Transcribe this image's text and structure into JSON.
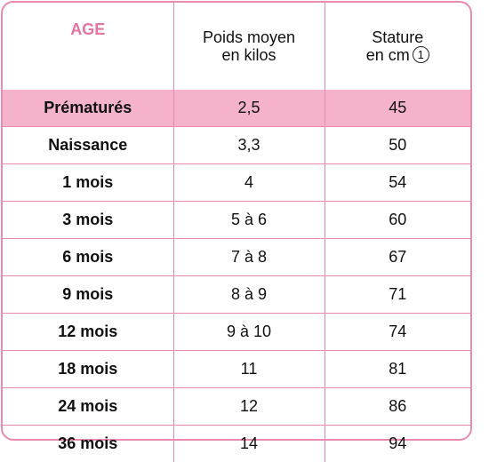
{
  "header": {
    "age": "AGE",
    "weight_line1": "Poids moyen",
    "weight_line2": "en kilos",
    "height_line1": "Stature",
    "height_line2": "en cm",
    "note_marker": "1"
  },
  "colors": {
    "accent": "#e98aae",
    "age_header": "#e5759f",
    "highlight_row": "#f4b3cb"
  },
  "rows": [
    {
      "age": "Prématurés",
      "weight": "2,5",
      "height": "45"
    },
    {
      "age": "Naissance",
      "weight": "3,3",
      "height": "50"
    },
    {
      "age": "1 mois",
      "weight": "4",
      "height": "54"
    },
    {
      "age": "3 mois",
      "weight": "5 à 6",
      "height": "60"
    },
    {
      "age": "6 mois",
      "weight": "7 à 8",
      "height": "67"
    },
    {
      "age": "9 mois",
      "weight": "8 à 9",
      "height": "71"
    },
    {
      "age": "12 mois",
      "weight": "9 à 10",
      "height": "74"
    },
    {
      "age": "18 mois",
      "weight": "11",
      "height": "81"
    },
    {
      "age": "24 mois",
      "weight": "12",
      "height": "86"
    },
    {
      "age": "36 mois",
      "weight": "14",
      "height": "94"
    }
  ]
}
